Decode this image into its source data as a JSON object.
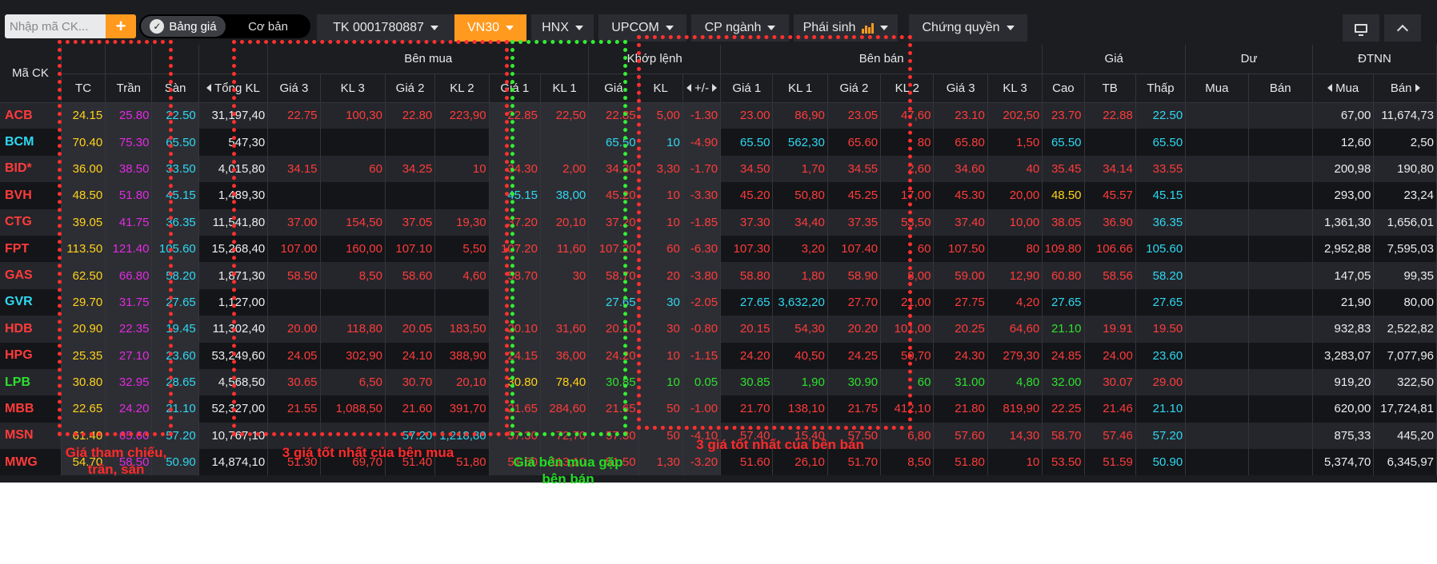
{
  "toolbar": {
    "search_placeholder": "Nhập mã CK...",
    "add_label": "+",
    "mode_active": "Bảng giá",
    "mode_other": "Cơ bản",
    "tabs": [
      {
        "label": "TK 0001780887"
      },
      {
        "label": "VN30"
      },
      {
        "label": "HNX"
      },
      {
        "label": "UPCOM"
      },
      {
        "label": "CP ngành"
      },
      {
        "label": "Phái sinh"
      },
      {
        "label": "Chứng quyền"
      }
    ],
    "accent": "#ff9a1f"
  },
  "table": {
    "groups": {
      "symbol": "Mã CK",
      "buy": "Bên mua",
      "match": "Khớp lệnh",
      "sell": "Bên bán",
      "price": "Giá",
      "dư": "Dư",
      "foreign": "ĐTNN"
    },
    "cols": {
      "tc": "TC",
      "tran": "Trần",
      "san": "Sàn",
      "tongkl": "Tổng KL",
      "b_g3": "Giá 3",
      "b_k3": "KL 3",
      "b_g2": "Giá 2",
      "b_k2": "KL 2",
      "b_g1": "Giá 1",
      "b_k1": "KL 1",
      "m_g": "Giá",
      "m_k": "KL",
      "m_pm": "+/-",
      "s_g1": "Giá 1",
      "s_k1": "KL 1",
      "s_g2": "Giá 2",
      "s_k2": "KL 2",
      "s_g3": "Giá 3",
      "s_k3": "KL 3",
      "cao": "Cao",
      "tb": "TB",
      "thap": "Thấp",
      "du_mua": "Mua",
      "du_ban": "Bán",
      "nn_mua": "Mua",
      "nn_ban": "Bán"
    },
    "rows": [
      {
        "sym": "ACB",
        "tc": "24.15",
        "tran": "25.80",
        "san": "22.50",
        "tkl": "31,197,40",
        "bg3": "22.75",
        "bk3": "100,30",
        "bg2": "22.80",
        "bk2": "223,90",
        "bg1": "22.85",
        "bk1": "22,50",
        "mg": "22.85",
        "mk": "5,00",
        "mpm": "-1.30",
        "sg1": "23.00",
        "sk1": "86,90",
        "sg2": "23.05",
        "sk2": "47,60",
        "sg3": "23.10",
        "sk3": "202,50",
        "cao": "23.70",
        "tb": "22.88",
        "thap": "22.50",
        "dm": "",
        "db": "",
        "nm": "67,00",
        "nb": "11,674,73"
      },
      {
        "sym": "BCM",
        "tc": "70.40",
        "tran": "75.30",
        "san": "65.50",
        "tkl": "547,30",
        "bg3": "",
        "bk3": "",
        "bg2": "",
        "bk2": "",
        "bg1": "",
        "bk1": "",
        "mg": "65.50",
        "mk": "10",
        "mpm": "-4.90",
        "sg1": "65.50",
        "sk1": "562,30",
        "sg2": "65.60",
        "sk2": "80",
        "sg3": "65.80",
        "sk3": "1,50",
        "cao": "65.50",
        "tb": "",
        "thap": "65.50",
        "dm": "",
        "db": "",
        "nm": "12,60",
        "nb": "2,50"
      },
      {
        "sym": "BID*",
        "tc": "36.00",
        "tran": "38.50",
        "san": "33.50",
        "tkl": "4,015,80",
        "bg3": "34.15",
        "bk3": "60",
        "bg2": "34.25",
        "bk2": "10",
        "bg1": "34.30",
        "bk1": "2,00",
        "mg": "34.30",
        "mk": "3,30",
        "mpm": "-1.70",
        "sg1": "34.50",
        "sk1": "1,70",
        "sg2": "34.55",
        "sk2": "2,60",
        "sg3": "34.60",
        "sk3": "40",
        "cao": "35.45",
        "tb": "34.14",
        "thap": "33.55",
        "dm": "",
        "db": "",
        "nm": "200,98",
        "nb": "190,80"
      },
      {
        "sym": "BVH",
        "tc": "48.50",
        "tran": "51.80",
        "san": "45.15",
        "tkl": "1,489,30",
        "bg3": "",
        "bk3": "",
        "bg2": "",
        "bk2": "",
        "bg1": "45.15",
        "bk1": "38,00",
        "mg": "45.20",
        "mk": "10",
        "mpm": "-3.30",
        "sg1": "45.20",
        "sk1": "50,80",
        "sg2": "45.25",
        "sk2": "17,00",
        "sg3": "45.30",
        "sk3": "20,00",
        "cao": "48.50",
        "tb": "45.57",
        "thap": "45.15",
        "dm": "",
        "db": "",
        "nm": "293,00",
        "nb": "23,24"
      },
      {
        "sym": "CTG",
        "tc": "39.05",
        "tran": "41.75",
        "san": "36.35",
        "tkl": "11,541,80",
        "bg3": "37.00",
        "bk3": "154,50",
        "bg2": "37.05",
        "bk2": "19,30",
        "bg1": "37.20",
        "bk1": "20,10",
        "mg": "37.20",
        "mk": "10",
        "mpm": "-1.85",
        "sg1": "37.30",
        "sk1": "34,40",
        "sg2": "37.35",
        "sk2": "53,50",
        "sg3": "37.40",
        "sk3": "10,00",
        "cao": "38.05",
        "tb": "36.90",
        "thap": "36.35",
        "dm": "",
        "db": "",
        "nm": "1,361,30",
        "nb": "1,656,01"
      },
      {
        "sym": "FPT",
        "tc": "113.50",
        "tran": "121.40",
        "san": "105.60",
        "tkl": "15,268,40",
        "bg3": "107.00",
        "bk3": "160,00",
        "bg2": "107.10",
        "bk2": "5,50",
        "bg1": "107.20",
        "bk1": "11,60",
        "mg": "107.20",
        "mk": "60",
        "mpm": "-6.30",
        "sg1": "107.30",
        "sk1": "3,20",
        "sg2": "107.40",
        "sk2": "60",
        "sg3": "107.50",
        "sk3": "80",
        "cao": "109.80",
        "tb": "106.66",
        "thap": "105.60",
        "dm": "",
        "db": "",
        "nm": "2,952,88",
        "nb": "7,595,03"
      },
      {
        "sym": "GAS",
        "tc": "62.50",
        "tran": "66.80",
        "san": "58.20",
        "tkl": "1,871,30",
        "bg3": "58.50",
        "bk3": "8,50",
        "bg2": "58.60",
        "bk2": "4,60",
        "bg1": "58.70",
        "bk1": "30",
        "mg": "58.70",
        "mk": "20",
        "mpm": "-3.80",
        "sg1": "58.80",
        "sk1": "1,80",
        "sg2": "58.90",
        "sk2": "8,00",
        "sg3": "59.00",
        "sk3": "12,90",
        "cao": "60.80",
        "tb": "58.56",
        "thap": "58.20",
        "dm": "",
        "db": "",
        "nm": "147,05",
        "nb": "99,35"
      },
      {
        "sym": "GVR",
        "tc": "29.70",
        "tran": "31.75",
        "san": "27.65",
        "tkl": "1,127,00",
        "bg3": "",
        "bk3": "",
        "bg2": "",
        "bk2": "",
        "bg1": "",
        "bk1": "",
        "mg": "27.65",
        "mk": "30",
        "mpm": "-2.05",
        "sg1": "27.65",
        "sk1": "3,632,20",
        "sg2": "27.70",
        "sk2": "21,00",
        "sg3": "27.75",
        "sk3": "4,20",
        "cao": "27.65",
        "tb": "",
        "thap": "27.65",
        "dm": "",
        "db": "",
        "nm": "21,90",
        "nb": "80,00"
      },
      {
        "sym": "HDB",
        "tc": "20.90",
        "tran": "22.35",
        "san": "19.45",
        "tkl": "11,302,40",
        "bg3": "20.00",
        "bk3": "118,80",
        "bg2": "20.05",
        "bk2": "183,50",
        "bg1": "20.10",
        "bk1": "31,60",
        "mg": "20.10",
        "mk": "30",
        "mpm": "-0.80",
        "sg1": "20.15",
        "sk1": "54,30",
        "sg2": "20.20",
        "sk2": "101,00",
        "sg3": "20.25",
        "sk3": "64,60",
        "cao": "21.10",
        "tb": "19.91",
        "thap": "19.50",
        "dm": "",
        "db": "",
        "nm": "932,83",
        "nb": "2,522,82"
      },
      {
        "sym": "HPG",
        "tc": "25.35",
        "tran": "27.10",
        "san": "23.60",
        "tkl": "53,249,60",
        "bg3": "24.05",
        "bk3": "302,90",
        "bg2": "24.10",
        "bk2": "388,90",
        "bg1": "24.15",
        "bk1": "36,00",
        "mg": "24.20",
        "mk": "10",
        "mpm": "-1.15",
        "sg1": "24.20",
        "sk1": "40,50",
        "sg2": "24.25",
        "sk2": "50,70",
        "sg3": "24.30",
        "sk3": "279,30",
        "cao": "24.85",
        "tb": "24.00",
        "thap": "23.60",
        "dm": "",
        "db": "",
        "nm": "3,283,07",
        "nb": "7,077,96"
      },
      {
        "sym": "LPB",
        "tc": "30.80",
        "tran": "32.95",
        "san": "28.65",
        "tkl": "4,568,50",
        "bg3": "30.65",
        "bk3": "6,50",
        "bg2": "30.70",
        "bk2": "20,10",
        "bg1": "30.80",
        "bk1": "78,40",
        "mg": "30.85",
        "mk": "10",
        "mpm": "0.05",
        "sg1": "30.85",
        "sk1": "1,90",
        "sg2": "30.90",
        "sk2": "60",
        "sg3": "31.00",
        "sk3": "4,80",
        "cao": "32.00",
        "tb": "30.07",
        "thap": "29.00",
        "dm": "",
        "db": "",
        "nm": "919,20",
        "nb": "322,50"
      },
      {
        "sym": "MBB",
        "tc": "22.65",
        "tran": "24.20",
        "san": "21.10",
        "tkl": "52,327,00",
        "bg3": "21.55",
        "bk3": "1,088,50",
        "bg2": "21.60",
        "bk2": "391,70",
        "bg1": "21.65",
        "bk1": "284,60",
        "mg": "21.65",
        "mk": "50",
        "mpm": "-1.00",
        "sg1": "21.70",
        "sk1": "138,10",
        "sg2": "21.75",
        "sk2": "412,10",
        "sg3": "21.80",
        "sk3": "819,90",
        "cao": "22.25",
        "tb": "21.46",
        "thap": "21.10",
        "dm": "",
        "db": "",
        "nm": "620,00",
        "nb": "17,724,81"
      },
      {
        "sym": "MSN",
        "tc": "61.40",
        "tran": "65.60",
        "san": "57.20",
        "tkl": "10,767,10",
        "bg3": "",
        "bk3": "",
        "bg2": "57.20",
        "bk2": "1,218,80",
        "bg1": "57.30",
        "bk1": "72,70",
        "mg": "57.30",
        "mk": "50",
        "mpm": "-4.10",
        "sg1": "57.40",
        "sk1": "15,40",
        "sg2": "57.50",
        "sk2": "6,80",
        "sg3": "57.60",
        "sk3": "14,30",
        "cao": "58.70",
        "tb": "57.46",
        "thap": "57.20",
        "dm": "",
        "db": "",
        "nm": "875,33",
        "nb": "445,20"
      },
      {
        "sym": "MWG",
        "tc": "54.70",
        "tran": "58.50",
        "san": "50.90",
        "tkl": "14,874,10",
        "bg3": "51.30",
        "bk3": "69,70",
        "bg2": "51.40",
        "bk2": "51,80",
        "bg1": "51.50",
        "bk1": "113,10",
        "mg": "51.50",
        "mk": "1,30",
        "mpm": "-3.20",
        "sg1": "51.60",
        "sk1": "26,10",
        "sg2": "51.70",
        "sk2": "8,50",
        "sg3": "51.80",
        "sk3": "10",
        "cao": "53.50",
        "tb": "51.59",
        "thap": "50.90",
        "dm": "",
        "db": "",
        "nm": "5,374,70",
        "nb": "6,345,97"
      }
    ]
  },
  "annotations": {
    "ref": "Giá tham chiếu,\ntrần, sàn",
    "buy": "3 giá tốt nhất của bên mua",
    "match": "Giá bên mua gặp\nbên bán",
    "sell": "3 giá tốt nhất của bên bán"
  },
  "colors": {
    "up": "#2ee02e",
    "down": "#ff3b3b",
    "ref": "#ffd21a",
    "ceiling": "#e22be2",
    "floor": "#2ed8f2",
    "neutral": "#ececec"
  }
}
